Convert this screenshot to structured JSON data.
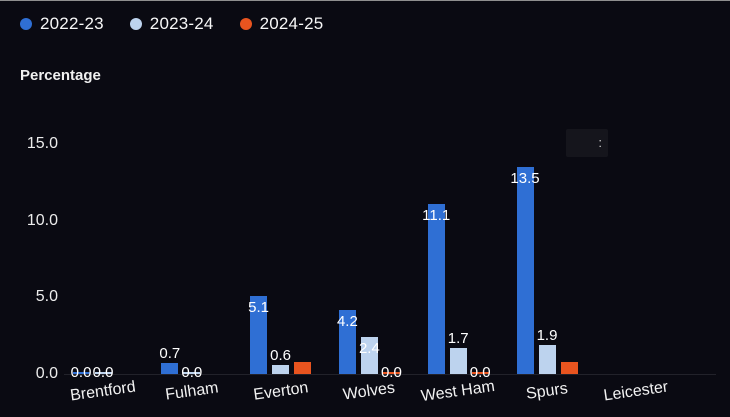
{
  "chart_data": {
    "type": "bar",
    "title": "",
    "ylabel": "Percentage",
    "xlabel": "",
    "ylim": [
      0,
      16.5
    ],
    "grid": false,
    "legend_position": "top-left",
    "ytick_values": [
      15,
      10,
      5,
      0
    ],
    "ytick_labels": [
      "15.0",
      "10.0",
      "5.0",
      "0.0"
    ],
    "categories": [
      "Brentford",
      "Fulham",
      "Everton",
      "Wolves",
      "West Ham",
      "Spurs",
      "Leicester"
    ],
    "series": [
      {
        "name": "2022-23",
        "color": "#2f6fd4",
        "values": [
          0.0,
          0.7,
          5.1,
          4.2,
          11.1,
          13.5,
          null
        ],
        "labels": [
          "0.0",
          "0.7",
          "5.1",
          "4.2",
          "11.1",
          "13.5",
          null
        ]
      },
      {
        "name": "2023-24",
        "color": "#bdd3ee",
        "values": [
          0.0,
          0.0,
          0.6,
          2.4,
          1.7,
          1.9,
          null
        ],
        "labels": [
          "0.0",
          "0.0",
          "0.6",
          "2.4",
          "1.7",
          "1.9",
          null
        ]
      },
      {
        "name": "2024-25",
        "color": "#e8541f",
        "values": [
          null,
          null,
          0.8,
          0.0,
          0.0,
          0.8,
          null
        ],
        "labels": [
          null,
          null,
          null,
          "0.0",
          "0.0",
          null,
          null
        ]
      }
    ]
  },
  "artifact": {
    "text": ":"
  }
}
